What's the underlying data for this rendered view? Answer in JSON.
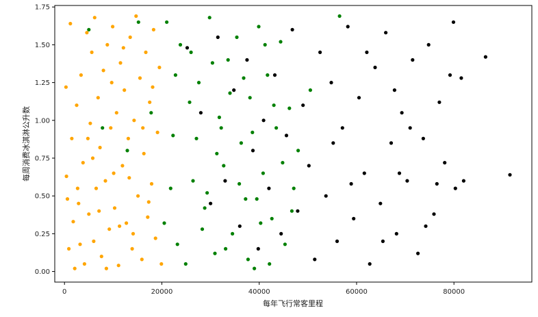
{
  "chart_data": {
    "type": "scatter",
    "title": "",
    "xlabel": "每年飞行常客里程",
    "ylabel": "每周消费冰淇淋公升数",
    "xlim": [
      -2000,
      96000
    ],
    "ylim": [
      -0.07,
      1.76
    ],
    "xticks": [
      0,
      20000,
      40000,
      60000,
      80000
    ],
    "xtick_labels": [
      "0",
      "20000",
      "40000",
      "60000",
      "80000"
    ],
    "yticks": [
      0.0,
      0.25,
      0.5,
      0.75,
      1.0,
      1.25,
      1.5,
      1.75
    ],
    "ytick_labels": [
      "0.00",
      "0.25",
      "0.50",
      "0.75",
      "1.00",
      "1.25",
      "1.50",
      "1.75"
    ],
    "grid": false,
    "legend": "none",
    "series": [
      {
        "color": "#FFA500",
        "points": [
          [
            1200,
            1.64
          ],
          [
            2100,
            0.02
          ],
          [
            1800,
            0.33
          ],
          [
            2500,
            1.1
          ],
          [
            300,
            1.22
          ],
          [
            400,
            0.63
          ],
          [
            600,
            0.48
          ],
          [
            900,
            0.15
          ],
          [
            1500,
            0.88
          ],
          [
            2900,
            0.45
          ],
          [
            3400,
            1.3
          ],
          [
            3800,
            0.72
          ],
          [
            4100,
            0.05
          ],
          [
            4600,
            1.58
          ],
          [
            5000,
            0.38
          ],
          [
            5300,
            0.98
          ],
          [
            5600,
            1.45
          ],
          [
            6000,
            0.2
          ],
          [
            6200,
            1.68
          ],
          [
            6500,
            0.55
          ],
          [
            6900,
            1.15
          ],
          [
            7300,
            0.82
          ],
          [
            7600,
            0.1
          ],
          [
            8000,
            1.33
          ],
          [
            8400,
            0.6
          ],
          [
            8800,
            1.5
          ],
          [
            9200,
            0.28
          ],
          [
            9500,
            0.95
          ],
          [
            9900,
            1.62
          ],
          [
            10300,
            0.42
          ],
          [
            10700,
            1.05
          ],
          [
            11100,
            0.04
          ],
          [
            11500,
            1.38
          ],
          [
            11900,
            0.7
          ],
          [
            12300,
            1.2
          ],
          [
            12700,
            0.32
          ],
          [
            13100,
            0.88
          ],
          [
            13500,
            1.55
          ],
          [
            13900,
            0.15
          ],
          [
            14300,
            1.0
          ],
          [
            14700,
            1.69
          ],
          [
            15100,
            0.5
          ],
          [
            15500,
            1.28
          ],
          [
            15900,
            0.08
          ],
          [
            16300,
            0.78
          ],
          [
            16700,
            1.45
          ],
          [
            17100,
            0.36
          ],
          [
            17500,
            1.12
          ],
          [
            17900,
            0.58
          ],
          [
            18300,
            1.6
          ],
          [
            18700,
            0.22
          ],
          [
            19100,
            0.92
          ],
          [
            19500,
            1.35
          ],
          [
            19900,
            0.05
          ],
          [
            3200,
            0.18
          ],
          [
            4800,
            0.88
          ],
          [
            7100,
            0.4
          ],
          [
            8600,
            0.02
          ],
          [
            10100,
            0.65
          ],
          [
            12100,
            1.48
          ],
          [
            14100,
            0.25
          ],
          [
            16100,
            0.95
          ],
          [
            18100,
            1.22
          ],
          [
            5800,
            0.75
          ],
          [
            9700,
            1.25
          ],
          [
            13300,
            0.62
          ],
          [
            17300,
            0.46
          ],
          [
            2700,
            0.55
          ],
          [
            11300,
            0.3
          ]
        ]
      },
      {
        "color": "#008000",
        "points": [
          [
            5000,
            1.6
          ],
          [
            7800,
            0.95
          ],
          [
            12900,
            0.8
          ],
          [
            15200,
            1.65
          ],
          [
            17800,
            1.05
          ],
          [
            21000,
            1.65
          ],
          [
            20500,
            0.32
          ],
          [
            22300,
            0.9
          ],
          [
            23800,
            1.5
          ],
          [
            24900,
            0.05
          ],
          [
            26400,
            0.6
          ],
          [
            27600,
            1.25
          ],
          [
            28800,
            0.42
          ],
          [
            29800,
            1.68
          ],
          [
            30900,
            0.12
          ],
          [
            31800,
            1.02
          ],
          [
            32700,
            0.7
          ],
          [
            33600,
            1.4
          ],
          [
            34500,
            0.25
          ],
          [
            35400,
            1.55
          ],
          [
            36300,
            0.85
          ],
          [
            37200,
            0.48
          ],
          [
            38100,
            1.15
          ],
          [
            39000,
            0.02
          ],
          [
            39900,
            1.62
          ],
          [
            40800,
            0.65
          ],
          [
            41700,
            1.3
          ],
          [
            42600,
            0.35
          ],
          [
            43500,
            0.95
          ],
          [
            44400,
            1.52
          ],
          [
            45300,
            0.18
          ],
          [
            46200,
            1.08
          ],
          [
            47100,
            0.55
          ],
          [
            48000,
            0.8
          ],
          [
            50500,
            1.2
          ],
          [
            56500,
            1.69
          ],
          [
            21800,
            0.55
          ],
          [
            23200,
            0.18
          ],
          [
            25700,
            1.12
          ],
          [
            27100,
            0.88
          ],
          [
            28300,
            0.28
          ],
          [
            29300,
            0.52
          ],
          [
            30400,
            1.38
          ],
          [
            31300,
            0.78
          ],
          [
            33100,
            0.15
          ],
          [
            34000,
            1.18
          ],
          [
            35900,
            0.58
          ],
          [
            36800,
            1.28
          ],
          [
            37700,
            0.08
          ],
          [
            38600,
            0.92
          ],
          [
            40300,
            0.32
          ],
          [
            41200,
            1.5
          ],
          [
            42100,
            0.05
          ],
          [
            43000,
            1.1
          ],
          [
            44800,
            0.72
          ],
          [
            46700,
            0.4
          ],
          [
            22800,
            1.3
          ],
          [
            26000,
            1.45
          ],
          [
            32200,
            0.95
          ],
          [
            39500,
            0.48
          ]
        ]
      },
      {
        "color": "#000000",
        "points": [
          [
            25200,
            1.48
          ],
          [
            28000,
            1.05
          ],
          [
            30000,
            0.45
          ],
          [
            31500,
            1.55
          ],
          [
            33000,
            0.6
          ],
          [
            34800,
            1.2
          ],
          [
            36000,
            0.3
          ],
          [
            37500,
            1.4
          ],
          [
            38700,
            0.8
          ],
          [
            39800,
            0.15
          ],
          [
            40900,
            1.0
          ],
          [
            42000,
            0.55
          ],
          [
            43200,
            1.3
          ],
          [
            44500,
            0.25
          ],
          [
            45600,
            0.9
          ],
          [
            46800,
            1.6
          ],
          [
            47900,
            0.4
          ],
          [
            49000,
            1.1
          ],
          [
            50200,
            0.7
          ],
          [
            51400,
            0.08
          ],
          [
            52500,
            1.45
          ],
          [
            53700,
            0.5
          ],
          [
            54800,
            1.25
          ],
          [
            56000,
            0.2
          ],
          [
            57100,
            0.95
          ],
          [
            58200,
            1.62
          ],
          [
            59400,
            0.35
          ],
          [
            60500,
            1.15
          ],
          [
            61600,
            0.65
          ],
          [
            62700,
            0.05
          ],
          [
            63800,
            1.35
          ],
          [
            64900,
            0.45
          ],
          [
            66000,
            1.58
          ],
          [
            67100,
            0.85
          ],
          [
            68200,
            0.25
          ],
          [
            69300,
            1.05
          ],
          [
            70400,
            0.6
          ],
          [
            71500,
            1.4
          ],
          [
            72600,
            0.12
          ],
          [
            73700,
            0.88
          ],
          [
            74800,
            1.5
          ],
          [
            75900,
            0.38
          ],
          [
            77000,
            1.12
          ],
          [
            78100,
            0.72
          ],
          [
            79200,
            1.3
          ],
          [
            80300,
            0.55
          ],
          [
            81500,
            1.28
          ],
          [
            82000,
            0.6
          ],
          [
            86500,
            1.42
          ],
          [
            91500,
            0.64
          ],
          [
            55200,
            0.85
          ],
          [
            58900,
            0.58
          ],
          [
            62100,
            1.45
          ],
          [
            65400,
            0.2
          ],
          [
            68800,
            0.65
          ],
          [
            71000,
            0.95
          ],
          [
            74200,
            0.3
          ],
          [
            76500,
            0.58
          ],
          [
            79900,
            1.65
          ],
          [
            67800,
            1.2
          ]
        ]
      }
    ]
  }
}
